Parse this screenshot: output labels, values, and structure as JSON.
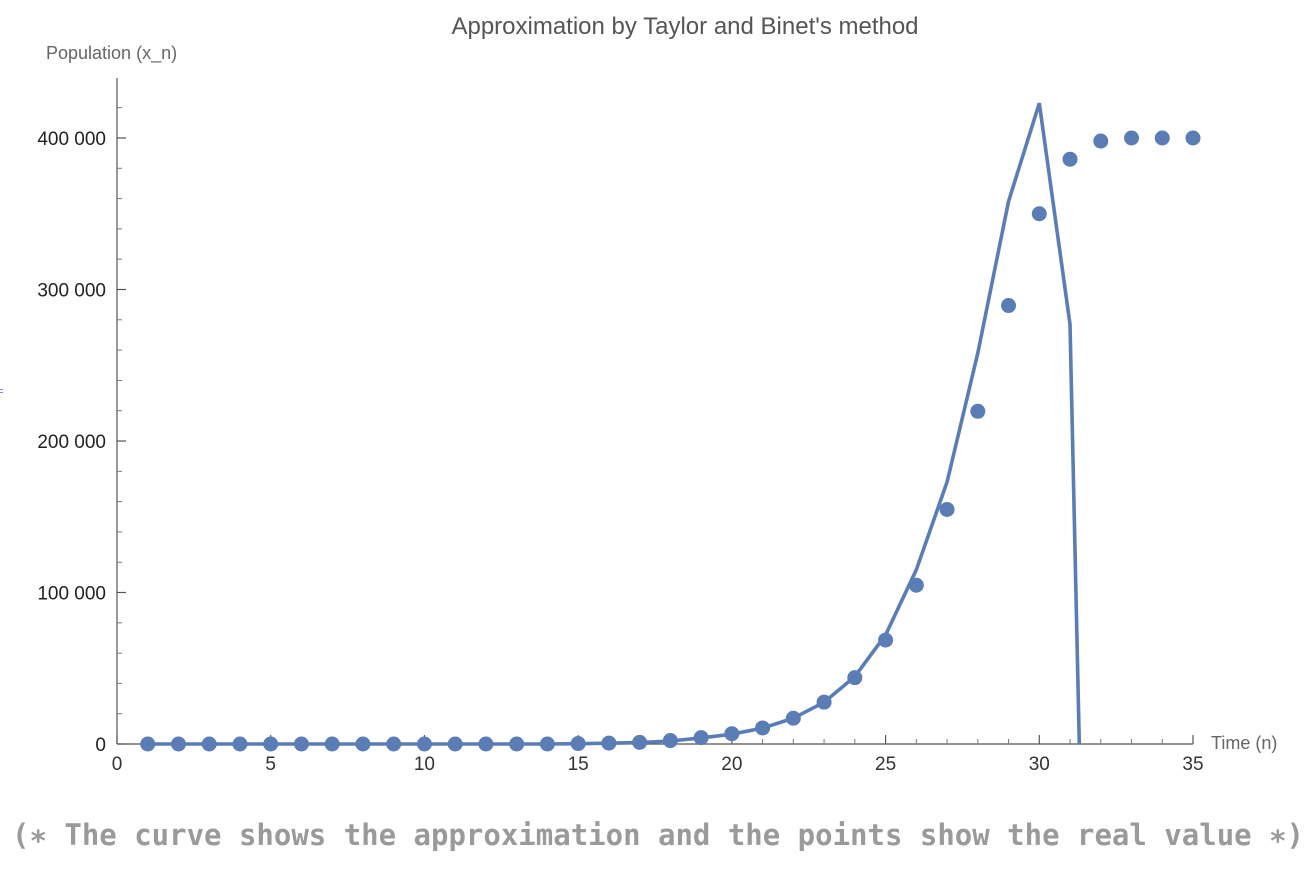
{
  "chart_data": {
    "type": "line",
    "title": "Approximation by Taylor and Binet's method",
    "xlabel": "Time (n)",
    "ylabel": "Population (x_n)",
    "xlim": [
      0,
      35
    ],
    "ylim": [
      0,
      430000
    ],
    "x_ticks": [
      0,
      5,
      10,
      15,
      20,
      25,
      30,
      35
    ],
    "y_ticks": [
      0,
      100000,
      200000,
      300000,
      400000
    ],
    "y_tick_labels": [
      "0",
      "100 000",
      "200 000",
      "300 000",
      "400 000"
    ],
    "grid": false,
    "color": "#5b7db5",
    "series": [
      {
        "style": "line",
        "x": [
          1,
          2,
          3,
          4,
          5,
          6,
          7,
          8,
          9,
          10,
          11,
          12,
          13,
          14,
          15,
          16,
          17,
          18,
          19,
          20,
          21,
          22,
          23,
          24,
          25,
          26,
          27,
          28,
          29,
          30,
          31,
          31.3
        ],
        "values": [
          0,
          0,
          0,
          0,
          0,
          0,
          0,
          0,
          0,
          0,
          0,
          0,
          0,
          0,
          200,
          500,
          1000,
          2000,
          4000,
          6500,
          10500,
          17000,
          27500,
          44500,
          72000,
          115000,
          173000,
          258000,
          358000,
          423000,
          277000,
          0
        ]
      },
      {
        "style": "points",
        "x": [
          1,
          2,
          3,
          4,
          5,
          6,
          7,
          8,
          9,
          10,
          11,
          12,
          13,
          14,
          15,
          16,
          17,
          18,
          19,
          20,
          21,
          22,
          23,
          24,
          25,
          26,
          27,
          28,
          29,
          30,
          31,
          32,
          33,
          34,
          35
        ],
        "values": [
          0,
          0,
          0,
          0,
          0,
          0,
          0,
          0,
          0,
          0,
          0,
          0,
          0,
          0,
          300,
          600,
          1100,
          2300,
          4200,
          6800,
          10600,
          17000,
          27600,
          43800,
          68600,
          104800,
          154800,
          219600,
          289400,
          350000,
          386000,
          398000,
          400000,
          400000,
          400000
        ]
      }
    ]
  },
  "comment": "(∗ The curve shows the approximation and the points show the real value ∗)"
}
